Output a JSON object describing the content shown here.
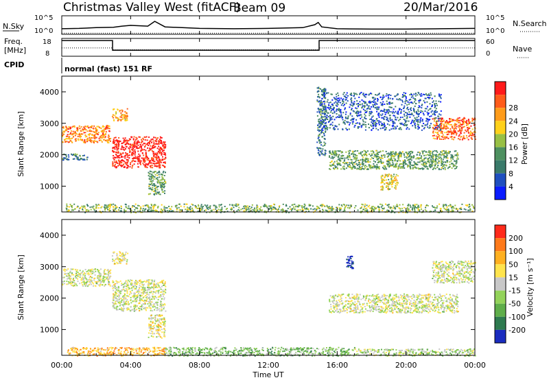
{
  "header": {
    "title": "Christmas Valley West (fitACF)",
    "beam": "Beam 09",
    "date": "20/Mar/2016"
  },
  "summary": {
    "nsky_label": "N.Sky",
    "nsearch_label": "N.Search",
    "noise_ticks": [
      "10^5",
      "10^0"
    ],
    "freq_label_1": "Freq.",
    "freq_label_2": "[MHz]",
    "freq_ticks": [
      "18",
      "8"
    ],
    "nave_label": "Nave",
    "nave_ticks": [
      "60",
      "0"
    ],
    "cpid_label": "CPID",
    "cpid_text": "normal (fast) 151 RF"
  },
  "colors": {
    "power_scale": [
      "#0a1cff",
      "#1f4fbf",
      "#3a7a6a",
      "#4e9060",
      "#98c045",
      "#ffd11a",
      "#ff9c1a",
      "#ff5c1a",
      "#ff1a1a"
    ],
    "velocity_scale": [
      "#1a2cbf",
      "#2e7a4f",
      "#5fae4a",
      "#93d35a",
      "#c8c8c8",
      "#ffe44d",
      "#ffb020",
      "#ff7a1a",
      "#ff2a1a"
    ]
  },
  "chart_data": [
    {
      "type": "line",
      "panel": "noise",
      "series": [
        {
          "name": "N.Sky",
          "x": [
            0,
            1,
            2,
            3,
            3.5,
            4,
            5,
            5.4,
            6,
            7,
            8,
            10,
            12,
            14,
            14.7,
            14.9,
            15.1,
            16,
            18,
            20,
            22,
            24
          ],
          "y": [
            1.5,
            1.6,
            1.8,
            1.9,
            2.2,
            2.4,
            2.2,
            3.5,
            2.0,
            1.8,
            1.6,
            1.5,
            1.6,
            1.8,
            2.6,
            3.2,
            2.0,
            1.5,
            1.4,
            1.4,
            1.5,
            1.6
          ]
        },
        {
          "name": "N.Search",
          "x": [
            0,
            24
          ],
          "y": [
            0.3,
            0.3
          ]
        }
      ],
      "xlim": [
        0,
        24
      ],
      "ylim": [
        0,
        5
      ]
    },
    {
      "type": "line",
      "panel": "freq-nave",
      "series": [
        {
          "name": "Freq",
          "x": [
            0,
            2.95,
            2.95,
            14.95,
            14.95,
            24
          ],
          "y": [
            16.8,
            16.8,
            11.4,
            11.4,
            16.8,
            16.8
          ]
        },
        {
          "name": "Nave",
          "x": [
            0,
            2.95,
            2.95,
            14.95,
            14.95,
            24
          ],
          "y": [
            28,
            28,
            22,
            22,
            28,
            28
          ]
        }
      ],
      "xlim": [
        0,
        24
      ],
      "ylim": [
        8,
        18
      ]
    },
    {
      "type": "heatmap",
      "panel": "power",
      "xlabel": "",
      "ylabel": "Slant Range [km]",
      "colorbar_label": "Power [dB]",
      "colorbar_ticks": [
        4,
        8,
        12,
        16,
        20,
        24,
        28
      ],
      "xlim": [
        0,
        24
      ],
      "ylim": [
        180,
        4500
      ],
      "yticks": [
        1000,
        2000,
        3000,
        4000
      ],
      "regions": [
        {
          "t0": 0.0,
          "t1": 2.8,
          "r0": 2400,
          "r1": 2950,
          "level": 0.75
        },
        {
          "t0": 0.0,
          "t1": 1.5,
          "r0": 1850,
          "r1": 2050,
          "level": 0.3
        },
        {
          "t0": 2.9,
          "t1": 3.8,
          "r0": 3100,
          "r1": 3500,
          "level": 0.7
        },
        {
          "t0": 2.9,
          "t1": 6.0,
          "r0": 1600,
          "r1": 2600,
          "level": 0.95
        },
        {
          "t0": 5.0,
          "t1": 6.0,
          "r0": 750,
          "r1": 1500,
          "level": 0.4
        },
        {
          "t0": 14.8,
          "t1": 15.3,
          "r0": 2000,
          "r1": 4200,
          "level": 0.3
        },
        {
          "t0": 15.5,
          "t1": 23.0,
          "r0": 1550,
          "r1": 2150,
          "level": 0.4
        },
        {
          "t0": 18.5,
          "t1": 19.5,
          "r0": 900,
          "r1": 1400,
          "level": 0.6
        },
        {
          "t0": 21.5,
          "t1": 24.0,
          "r0": 2500,
          "r1": 3200,
          "level": 0.8
        },
        {
          "t0": 15.0,
          "t1": 22.0,
          "r0": 2800,
          "r1": 4000,
          "level": 0.2
        },
        {
          "t0": 0.2,
          "t1": 24.0,
          "r0": 180,
          "r1": 450,
          "level": 0.45
        }
      ]
    },
    {
      "type": "heatmap",
      "panel": "velocity",
      "xlabel": "Time UT",
      "ylabel": "Slant Range [km]",
      "colorbar_label": "Velocity [m s⁻¹]",
      "colorbar_ticks": [
        200,
        100,
        50,
        15,
        -15,
        -50,
        -100,
        -200
      ],
      "xlim": [
        0,
        24
      ],
      "ylim": [
        180,
        4500
      ],
      "yticks": [
        1000,
        2000,
        3000,
        4000
      ],
      "xticks": [
        "00:00",
        "04:00",
        "08:00",
        "12:00",
        "16:00",
        "20:00",
        "00:00"
      ],
      "regions": [
        {
          "t0": 0.0,
          "t1": 2.8,
          "r0": 2400,
          "r1": 2950,
          "level": 0.5
        },
        {
          "t0": 2.9,
          "t1": 6.0,
          "r0": 1600,
          "r1": 2600,
          "level": 0.5
        },
        {
          "t0": 2.9,
          "t1": 3.8,
          "r0": 3100,
          "r1": 3500,
          "level": 0.55
        },
        {
          "t0": 5.0,
          "t1": 6.0,
          "r0": 750,
          "r1": 1500,
          "level": 0.55
        },
        {
          "t0": 15.5,
          "t1": 23.0,
          "r0": 1550,
          "r1": 2150,
          "level": 0.5
        },
        {
          "t0": 21.5,
          "t1": 24.0,
          "r0": 2500,
          "r1": 3200,
          "level": 0.5
        },
        {
          "t0": 16.5,
          "t1": 16.9,
          "r0": 2950,
          "r1": 3350,
          "level": 0.02
        },
        {
          "t0": 0.3,
          "t1": 6.0,
          "r0": 180,
          "r1": 450,
          "level": 0.7
        },
        {
          "t0": 6.0,
          "t1": 17.0,
          "r0": 180,
          "r1": 450,
          "level": 0.35
        },
        {
          "t0": 17.0,
          "t1": 24.0,
          "r0": 180,
          "r1": 400,
          "level": 0.45
        }
      ]
    }
  ]
}
